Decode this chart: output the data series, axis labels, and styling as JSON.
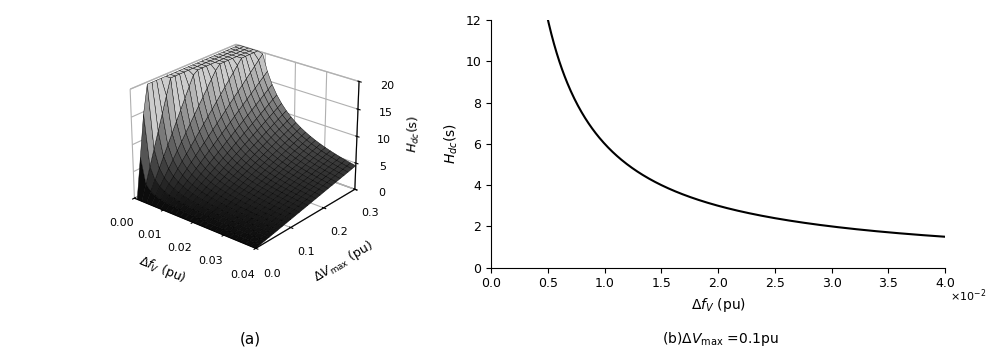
{
  "formula_k": 0.6,
  "df_min_3d": 0.001,
  "df_max_3d": 0.04,
  "dV_min_3d": 0.0,
  "dV_max_3d": 0.3,
  "df_n": 25,
  "dV_n": 25,
  "Hdc_max_3d": 20,
  "df_min_2d": 0.001,
  "df_max_2d": 0.04,
  "dV_fixed": 0.1,
  "Hdc_max_2d": 12,
  "xlabel_3d": "$\\Delta f_{V}$ (pu)",
  "ylabel_3d": "$\\Delta V_{\\max}$ (pu)",
  "zlabel_3d": "$H_{dc}$(s)",
  "xlabel_2d": "$\\Delta f_{V}$ (pu)",
  "ylabel_2d": "$H_{dc}$(s)",
  "label_a": "(a)",
  "label_b": "(b)$\\Delta V_{\\max}$ =0.1pu",
  "xticks_3d": [
    0,
    0.01,
    0.02,
    0.03,
    0.04
  ],
  "yticks_3d": [
    0,
    0.1,
    0.2,
    0.3
  ],
  "zticks_3d": [
    0,
    5,
    10,
    15,
    20
  ],
  "xticks_2d": [
    0,
    0.5,
    1.0,
    1.5,
    2.0,
    2.5,
    3.0,
    3.5,
    4.0
  ],
  "yticks_2d": [
    0,
    2,
    4,
    6,
    8,
    10,
    12
  ],
  "x2d_scale": 0.01,
  "surface_cmap": "gray",
  "line_color": "black",
  "line_width": 1.5,
  "bg_color": "white",
  "figsize": [
    10,
    3.5
  ],
  "dpi": 100
}
